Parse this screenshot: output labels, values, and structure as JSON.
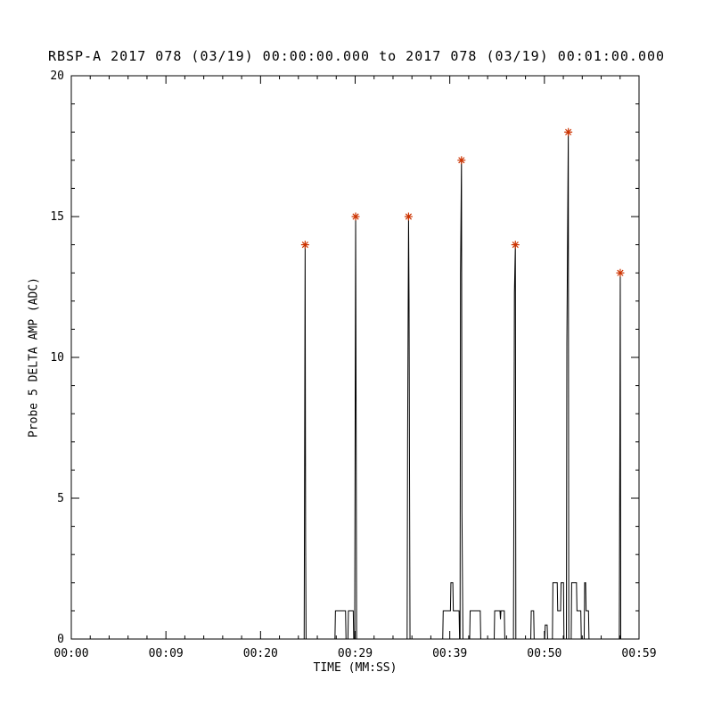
{
  "title": "RBSP-A 2017 078 (03/19) 00:00:00.000 to 2017 078 (03/19) 00:01:00.000",
  "colors": {
    "background": "#ffffff",
    "axis": "#000000",
    "line": "#000000",
    "marker": "#cc3300"
  },
  "chart_data": {
    "type": "line",
    "title": "RBSP-A 2017 078 (03/19) 00:00:00.000 to 2017 078 (03/19) 00:01:00.000",
    "xlabel": "TIME (MM:SS)",
    "ylabel": "Probe 5 DELTA AMP (ADC)",
    "xlim": [
      0,
      59
    ],
    "ylim": [
      0,
      20
    ],
    "grid": false,
    "legend": false,
    "x_ticks": {
      "positions": [
        0,
        9.8333,
        19.6667,
        29.5,
        39.3333,
        49.1667,
        59
      ],
      "labels": [
        "00:00",
        "00:09",
        "00:20",
        "00:29",
        "00:39",
        "00:50",
        "00:59"
      ],
      "minor_per_interval": 5
    },
    "y_ticks": {
      "positions": [
        0,
        5,
        10,
        15,
        20
      ],
      "labels": [
        "0",
        "5",
        "10",
        "15",
        "20"
      ],
      "minor_step": 1
    },
    "series": [
      {
        "name": "Probe 5 DELTA AMP",
        "color": "#000000",
        "points": [
          [
            0,
            0
          ],
          [
            24.2,
            0
          ],
          [
            24.3,
            14
          ],
          [
            24.35,
            3.5
          ],
          [
            24.4,
            0
          ],
          [
            27.4,
            0
          ],
          [
            27.45,
            1
          ],
          [
            28.5,
            1
          ],
          [
            28.55,
            0
          ],
          [
            28.75,
            0
          ],
          [
            28.8,
            1
          ],
          [
            29.3,
            1
          ],
          [
            29.35,
            0
          ],
          [
            29.45,
            0
          ],
          [
            29.5,
            8
          ],
          [
            29.55,
            15
          ],
          [
            29.6,
            8
          ],
          [
            29.65,
            0
          ],
          [
            34.9,
            0
          ],
          [
            34.95,
            7
          ],
          [
            35.05,
            15
          ],
          [
            35.1,
            12
          ],
          [
            35.2,
            0
          ],
          [
            38.6,
            0
          ],
          [
            38.65,
            1
          ],
          [
            39.4,
            1
          ],
          [
            39.45,
            2
          ],
          [
            39.65,
            2
          ],
          [
            39.7,
            1
          ],
          [
            40.3,
            1
          ],
          [
            40.35,
            0
          ],
          [
            40.4,
            0
          ],
          [
            40.45,
            13
          ],
          [
            40.55,
            17
          ],
          [
            40.6,
            4.5
          ],
          [
            40.7,
            0
          ],
          [
            41.4,
            0
          ],
          [
            41.45,
            1
          ],
          [
            42.5,
            1
          ],
          [
            42.55,
            0
          ],
          [
            43.95,
            0
          ],
          [
            44.0,
            1
          ],
          [
            44.55,
            1
          ],
          [
            44.6,
            0.7
          ],
          [
            44.65,
            1
          ],
          [
            45.0,
            1
          ],
          [
            45.05,
            0
          ],
          [
            45.95,
            0
          ],
          [
            46.0,
            5.5
          ],
          [
            46.05,
            12.3
          ],
          [
            46.15,
            14
          ],
          [
            46.2,
            0
          ],
          [
            47.75,
            0
          ],
          [
            47.8,
            1
          ],
          [
            48.05,
            1
          ],
          [
            48.1,
            0
          ],
          [
            49.2,
            0
          ],
          [
            49.25,
            0.5
          ],
          [
            49.45,
            0.5
          ],
          [
            49.5,
            0
          ],
          [
            50.0,
            0
          ],
          [
            50.05,
            2
          ],
          [
            50.5,
            2
          ],
          [
            50.55,
            1
          ],
          [
            50.85,
            1
          ],
          [
            50.9,
            2
          ],
          [
            51.15,
            2
          ],
          [
            51.2,
            0
          ],
          [
            51.45,
            0
          ],
          [
            51.5,
            10.5
          ],
          [
            51.65,
            18
          ],
          [
            51.7,
            0
          ],
          [
            51.95,
            0
          ],
          [
            52.0,
            2
          ],
          [
            52.5,
            2
          ],
          [
            52.55,
            1
          ],
          [
            52.95,
            1
          ],
          [
            53.0,
            0
          ],
          [
            53.3,
            0
          ],
          [
            53.35,
            2
          ],
          [
            53.45,
            2
          ],
          [
            53.5,
            1
          ],
          [
            53.75,
            1
          ],
          [
            53.8,
            0
          ],
          [
            56.95,
            0
          ],
          [
            57.0,
            6.2
          ],
          [
            57.05,
            13
          ],
          [
            57.1,
            0
          ],
          [
            59,
            0
          ]
        ]
      }
    ],
    "markers": {
      "symbol": "asterisk",
      "color": "#cc3300",
      "points": [
        [
          24.3,
          14
        ],
        [
          29.55,
          15
        ],
        [
          35.05,
          15
        ],
        [
          40.55,
          17
        ],
        [
          46.15,
          14
        ],
        [
          51.65,
          18
        ],
        [
          57.05,
          13
        ]
      ]
    }
  }
}
